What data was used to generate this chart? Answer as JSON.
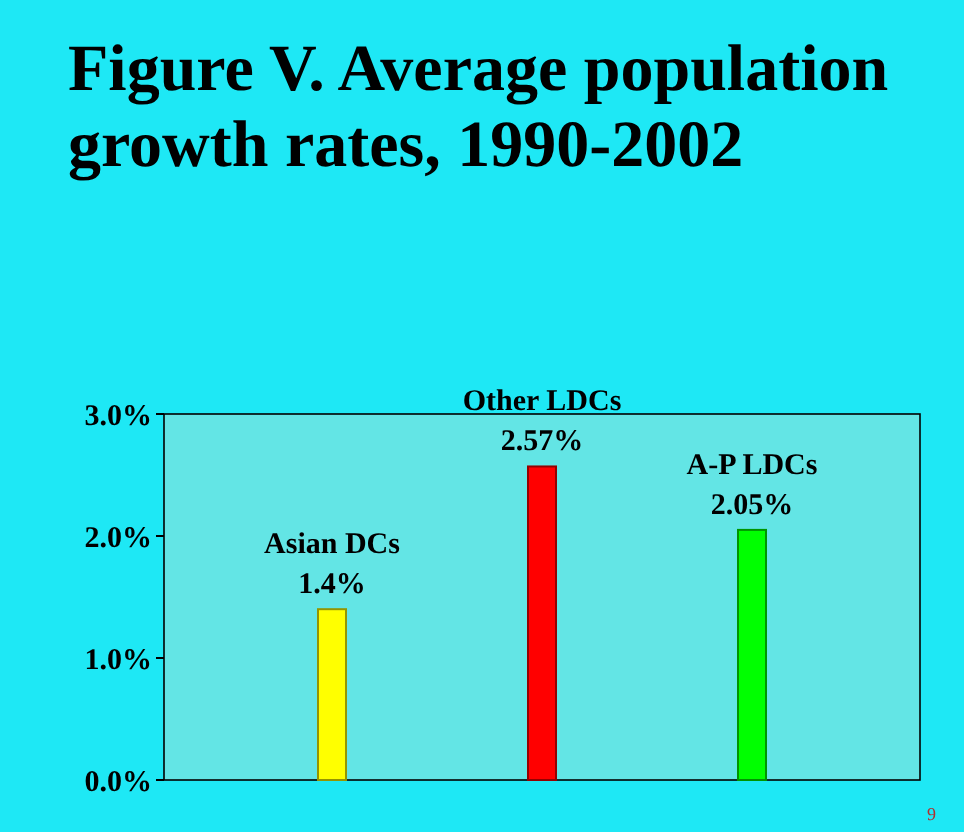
{
  "chart_data": {
    "type": "bar",
    "title": "Figure V.  Average population growth rates, 1990-2002",
    "categories": [
      "Asian DCs",
      "Other LDCs",
      "A-P LDCs"
    ],
    "values": [
      1.4,
      2.57,
      2.05
    ],
    "colors": [
      "#ffff00",
      "#ff0000",
      "#00ff00"
    ],
    "value_labels": [
      "1.4%",
      "2.57%",
      "2.05%"
    ],
    "ylim": [
      0,
      3
    ],
    "yticks": [
      {
        "value": 0,
        "label": "0.0%"
      },
      {
        "value": 1,
        "label": "1.0%"
      },
      {
        "value": 2,
        "label": "2.0%"
      },
      {
        "value": 3,
        "label": "3.0%"
      }
    ],
    "annotations": [
      "9"
    ]
  }
}
